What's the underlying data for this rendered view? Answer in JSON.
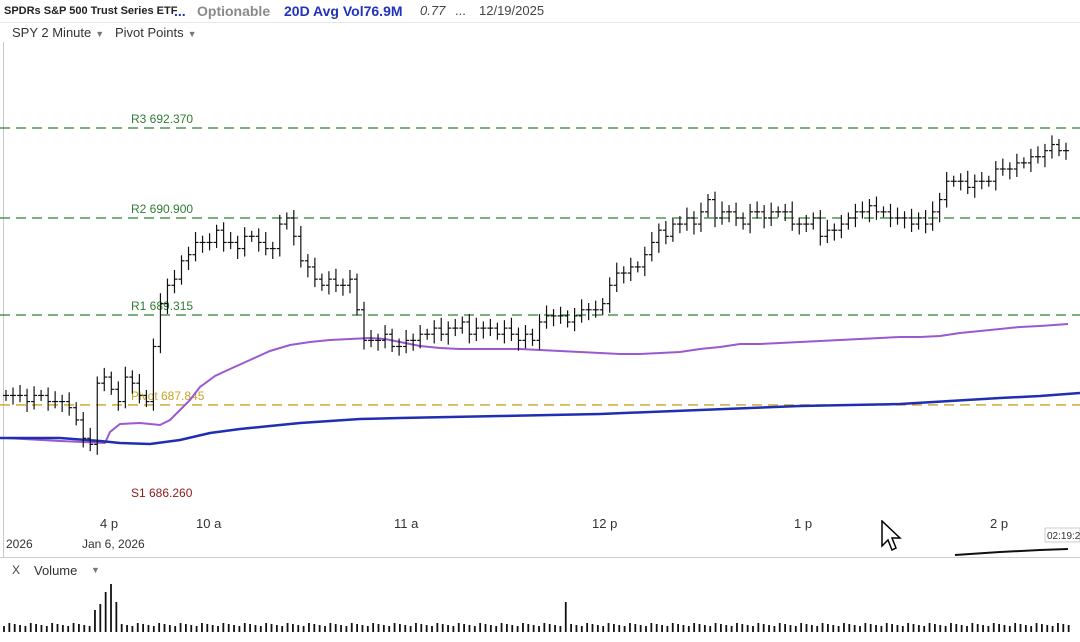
{
  "header": {
    "name": "SPDRs S&P 500 Trust Series ETF",
    "dots": "...",
    "optionable": "Optionable",
    "avg_vol": "20D Avg Vol76.9M",
    "change": "0.77",
    "dots2": "...",
    "date": "12/19/2025"
  },
  "chart_toolbar": {
    "symbol_interval": "SPY 2 Minute",
    "study": "Pivot Points"
  },
  "pivots": [
    {
      "label": "R3 692.370",
      "value": 692.37,
      "color": "#2e7d32"
    },
    {
      "label": "R2 690.900",
      "value": 690.9,
      "color": "#2e7d32"
    },
    {
      "label": "R1 689.315",
      "value": 689.315,
      "color": "#2e7d32"
    },
    {
      "label": "Pivot 687.845",
      "value": 687.845,
      "color": "#c9a227"
    },
    {
      "label": "S1 686.260",
      "value": 686.26,
      "color": "#8b1a1a"
    }
  ],
  "x_axis": {
    "left_partial": "2026",
    "date_label": "Jan 6, 2026",
    "ticks": [
      "4 p",
      "10 a",
      "11 a",
      "12 p",
      "1 p",
      "2 p"
    ],
    "time_readout": "02:19:2"
  },
  "volume_panel": {
    "close": "X",
    "label": "Volume"
  },
  "colors": {
    "price_bars": "#111111",
    "ma_fast": "#9b59d0",
    "ma_slow": "#1f2fb0",
    "header_blue": "#2233bb"
  },
  "chart_data": {
    "type": "ohlc",
    "symbol": "SPY",
    "interval": "2 Minute",
    "closes": [
      688.0,
      688.0,
      688.0,
      687.9,
      688.0,
      688.0,
      687.9,
      687.9,
      687.9,
      687.8,
      687.6,
      687.3,
      687.2,
      688.2,
      688.3,
      688.1,
      687.9,
      688.3,
      688.2,
      688.0,
      687.9,
      688.8,
      689.5,
      689.8,
      689.9,
      690.2,
      690.3,
      690.5,
      690.5,
      690.5,
      690.7,
      690.5,
      690.5,
      690.4,
      690.6,
      690.6,
      690.5,
      690.4,
      690.4,
      690.8,
      690.9,
      690.6,
      690.2,
      690.1,
      689.9,
      689.8,
      689.9,
      689.8,
      689.8,
      689.9,
      689.4,
      688.9,
      688.9,
      688.9,
      689.0,
      688.8,
      688.8,
      688.9,
      688.9,
      689.0,
      689.0,
      689.1,
      689.0,
      689.1,
      689.1,
      689.2,
      689.0,
      689.1,
      689.1,
      689.1,
      689.0,
      689.1,
      689.0,
      688.9,
      689.0,
      688.9,
      689.2,
      689.3,
      689.3,
      689.3,
      689.2,
      689.3,
      689.4,
      689.4,
      689.4,
      689.5,
      689.8,
      690.0,
      690.0,
      690.1,
      690.1,
      690.3,
      690.5,
      690.7,
      690.6,
      690.8,
      690.8,
      690.9,
      690.8,
      691.0,
      691.2,
      690.9,
      691.0,
      691.0,
      690.9,
      690.8,
      691.0,
      691.0,
      690.9,
      691.0,
      691.0,
      691.0,
      690.8,
      690.8,
      690.8,
      690.9,
      690.6,
      690.7,
      690.7,
      690.8,
      690.9,
      691.0,
      691.0,
      691.1,
      691.0,
      691.0,
      690.9,
      690.9,
      690.9,
      690.8,
      690.9,
      690.8,
      691.0,
      691.2,
      691.5,
      691.5,
      691.5,
      691.4,
      691.5,
      691.5,
      691.5,
      691.7,
      691.7,
      691.7,
      691.8,
      691.8,
      691.9,
      691.9,
      692.0,
      692.1,
      692.0,
      692.0
    ]
  }
}
